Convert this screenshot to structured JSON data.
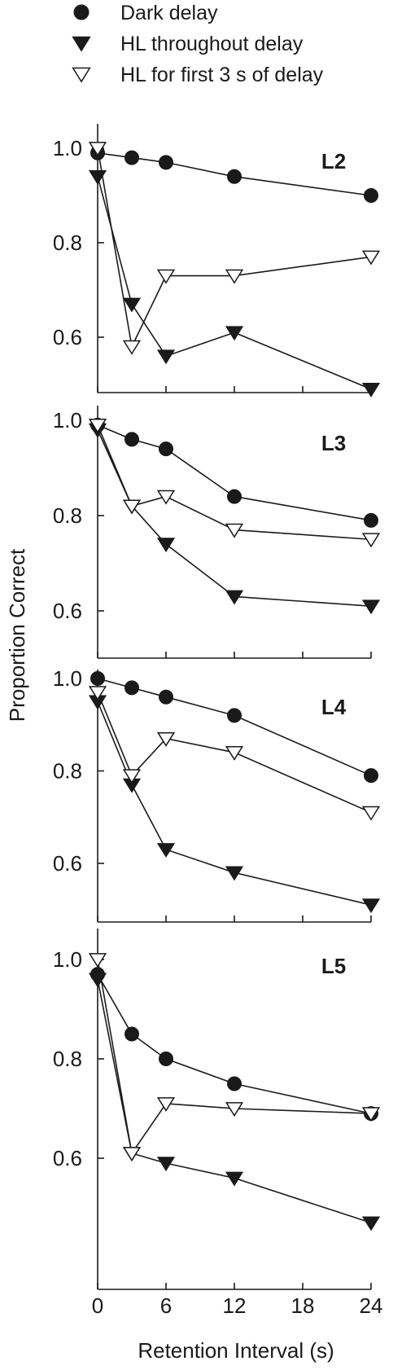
{
  "chart_data": {
    "type": "line",
    "xlabel": "Retention Interval (s)",
    "ylabel": "Proportion Correct",
    "x_ticks": [
      0,
      6,
      12,
      18,
      24
    ],
    "xlim": [
      0,
      24
    ],
    "y_ticks": [
      0.6,
      0.8,
      1.0
    ],
    "grid": false,
    "legend_position": "top-left",
    "legend": [
      {
        "name": "Dark delay",
        "marker": "filled-circle"
      },
      {
        "name": "HL throughout delay",
        "marker": "filled-triangle-down"
      },
      {
        "name": "HL for first 3 s of delay",
        "marker": "open-triangle-down"
      }
    ],
    "panels": [
      {
        "label": "L2",
        "ylim": [
          0.5,
          1.0
        ],
        "series": [
          {
            "name": "Dark delay",
            "x": [
              0,
              3,
              6,
              12,
              24
            ],
            "y": [
              0.99,
              0.98,
              0.97,
              0.94,
              0.9
            ]
          },
          {
            "name": "HL throughout delay",
            "x": [
              0,
              3,
              6,
              12,
              24
            ],
            "y": [
              0.94,
              0.67,
              0.56,
              0.61,
              0.49
            ]
          },
          {
            "name": "HL for first 3 s of delay",
            "x": [
              0,
              3,
              6,
              12,
              24
            ],
            "y": [
              1.0,
              0.58,
              0.73,
              0.73,
              0.77
            ]
          }
        ]
      },
      {
        "label": "L3",
        "ylim": [
          0.55,
          1.0
        ],
        "series": [
          {
            "name": "Dark delay",
            "x": [
              0,
              3,
              6,
              12,
              24
            ],
            "y": [
              0.99,
              0.96,
              0.94,
              0.84,
              0.79
            ]
          },
          {
            "name": "HL throughout delay",
            "x": [
              0,
              3,
              6,
              12,
              24
            ],
            "y": [
              0.98,
              0.82,
              0.74,
              0.63,
              0.61
            ]
          },
          {
            "name": "HL for first 3 s of delay",
            "x": [
              0,
              3,
              6,
              12,
              24
            ],
            "y": [
              0.99,
              0.82,
              0.84,
              0.77,
              0.75
            ]
          }
        ]
      },
      {
        "label": "L4",
        "ylim": [
          0.5,
          1.0
        ],
        "series": [
          {
            "name": "Dark delay",
            "x": [
              0,
              3,
              6,
              12,
              24
            ],
            "y": [
              1.0,
              0.98,
              0.96,
              0.92,
              0.79
            ]
          },
          {
            "name": "HL throughout delay",
            "x": [
              0,
              3,
              6,
              12,
              24
            ],
            "y": [
              0.95,
              0.77,
              0.63,
              0.58,
              0.51
            ]
          },
          {
            "name": "HL for first 3 s of delay",
            "x": [
              0,
              3,
              6,
              12,
              24
            ],
            "y": [
              0.97,
              0.79,
              0.87,
              0.84,
              0.71
            ]
          }
        ]
      },
      {
        "label": "L5",
        "ylim": [
          0.45,
          1.0
        ],
        "series": [
          {
            "name": "Dark delay",
            "x": [
              0,
              3,
              6,
              12,
              24
            ],
            "y": [
              0.97,
              0.85,
              0.8,
              0.75,
              0.69
            ]
          },
          {
            "name": "HL throughout delay",
            "x": [
              0,
              3,
              6,
              12,
              24
            ],
            "y": [
              0.96,
              0.61,
              0.59,
              0.56,
              0.47
            ]
          },
          {
            "name": "HL for first 3 s of delay",
            "x": [
              0,
              3,
              6,
              12,
              24
            ],
            "y": [
              1.0,
              0.61,
              0.71,
              0.7,
              0.69
            ]
          }
        ]
      }
    ]
  }
}
